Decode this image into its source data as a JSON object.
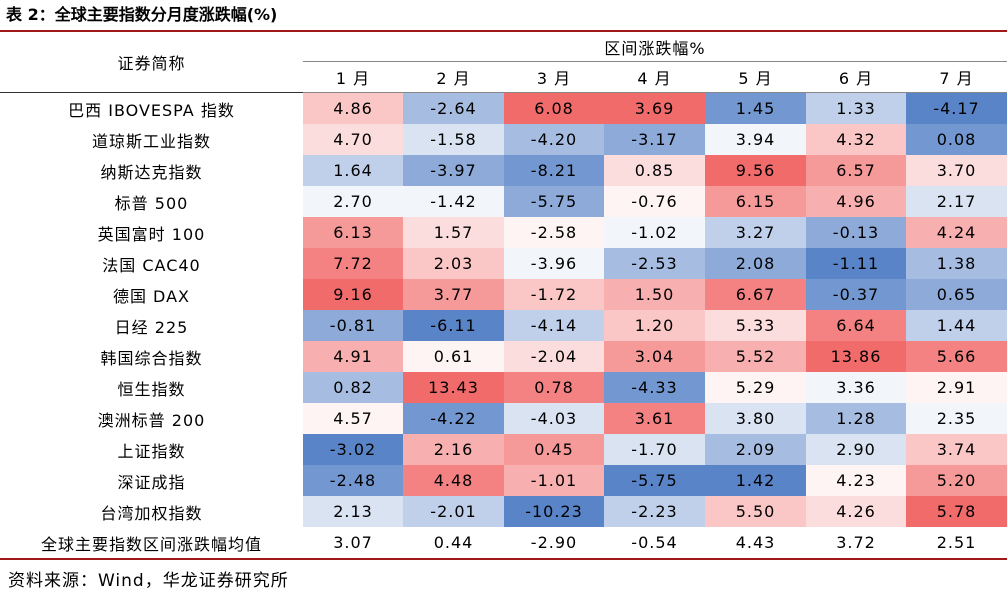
{
  "title": "表 2：全球主要指数分月度涨跌幅(%)",
  "header": {
    "name_col": "证券简称",
    "group": "区间涨跌幅%",
    "months": [
      "1 月",
      "2 月",
      "3 月",
      "4 月",
      "5 月",
      "6 月",
      "7 月"
    ]
  },
  "rows": [
    {
      "name": "巴西 IBOVESPA 指数",
      "values": [
        "4.86",
        "-2.64",
        "6.08",
        "3.69",
        "1.45",
        "1.33",
        "-4.17"
      ]
    },
    {
      "name": "道琼斯工业指数",
      "values": [
        "4.70",
        "-1.58",
        "-4.20",
        "-3.17",
        "3.94",
        "4.32",
        "0.08"
      ]
    },
    {
      "name": "纳斯达克指数",
      "values": [
        "1.64",
        "-3.97",
        "-8.21",
        "0.85",
        "9.56",
        "6.57",
        "3.70"
      ]
    },
    {
      "name": "标普 500",
      "values": [
        "2.70",
        "-1.42",
        "-5.75",
        "-0.76",
        "6.15",
        "4.96",
        "2.17"
      ]
    },
    {
      "name": "英国富时 100",
      "values": [
        "6.13",
        "1.57",
        "-2.58",
        "-1.02",
        "3.27",
        "-0.13",
        "4.24"
      ]
    },
    {
      "name": "法国 CAC40",
      "values": [
        "7.72",
        "2.03",
        "-3.96",
        "-2.53",
        "2.08",
        "-1.11",
        "1.38"
      ]
    },
    {
      "name": "德国 DAX",
      "values": [
        "9.16",
        "3.77",
        "-1.72",
        "1.50",
        "6.67",
        "-0.37",
        "0.65"
      ]
    },
    {
      "name": "日经 225",
      "values": [
        "-0.81",
        "-6.11",
        "-4.14",
        "1.20",
        "5.33",
        "6.64",
        "1.44"
      ]
    },
    {
      "name": "韩国综合指数",
      "values": [
        "4.91",
        "0.61",
        "-2.04",
        "3.04",
        "5.52",
        "13.86",
        "5.66"
      ]
    },
    {
      "name": "恒生指数",
      "values": [
        "0.82",
        "13.43",
        "0.78",
        "-4.33",
        "5.29",
        "3.36",
        "2.91"
      ]
    },
    {
      "name": "澳洲标普 200",
      "values": [
        "4.57",
        "-4.22",
        "-4.03",
        "3.61",
        "3.80",
        "1.28",
        "2.35"
      ]
    },
    {
      "name": "上证指数",
      "values": [
        "-3.02",
        "2.16",
        "0.45",
        "-1.70",
        "2.09",
        "2.90",
        "3.74"
      ]
    },
    {
      "name": "深证成指",
      "values": [
        "-2.48",
        "4.48",
        "-1.01",
        "-5.75",
        "1.42",
        "4.23",
        "5.20"
      ]
    },
    {
      "name": "台湾加权指数",
      "values": [
        "2.13",
        "-2.01",
        "-10.23",
        "-2.23",
        "5.50",
        "4.26",
        "5.78"
      ]
    }
  ],
  "average_row": {
    "name": "全球主要指数区间涨跌幅均值",
    "values": [
      "3.07",
      "0.44",
      "-2.90",
      "-0.54",
      "4.43",
      "3.72",
      "2.51"
    ]
  },
  "source": "资料来源：Wind，华龙证券研究所",
  "colors": {
    "high": "#f26b6b",
    "mid": "#ffffff",
    "low": "#5a84c8",
    "rule": "#a01818"
  }
}
